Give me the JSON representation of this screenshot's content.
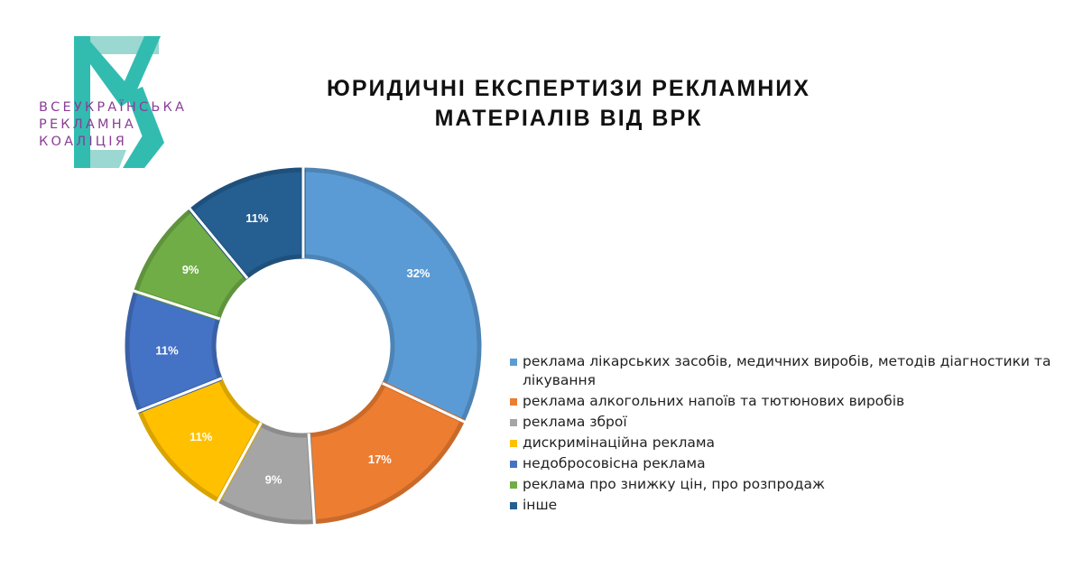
{
  "logo": {
    "lines": [
      "ВСЕУКРАЇНСЬКА",
      "РЕКЛАМНА",
      "КОАЛІЦІЯ"
    ],
    "colors": {
      "teal": "#32bcb0",
      "teal_light": "#9ad8d1",
      "purple": "#8a3d96"
    }
  },
  "chart_data": {
    "type": "donut",
    "title_lines": [
      "ЮРИДИЧНІ ЕКСПЕРТИЗИ РЕКЛАМНИХ",
      "МАТЕРІАЛІВ ВІД ВРК"
    ],
    "series": [
      {
        "name": "реклама лікарських засобів, медичних виробів, методів діагностики та лікування",
        "value": 32,
        "label": "32%",
        "color": "#5b9bd5"
      },
      {
        "name": "реклама алкогольних напоїв та тютюнових виробів",
        "value": 17,
        "label": "17%",
        "color": "#ed7d31"
      },
      {
        "name": "реклама зброї",
        "value": 9,
        "label": "9%",
        "color": "#a5a5a5"
      },
      {
        "name": "дискримінаційна реклама",
        "value": 11,
        "label": "11%",
        "color": "#ffc000"
      },
      {
        "name": "недобросовісна реклама",
        "value": 11,
        "label": "11%",
        "color": "#4472c4"
      },
      {
        "name": "реклама про знижку цін, про розпродаж",
        "value": 9,
        "label": "9%",
        "color": "#70ad47"
      },
      {
        "name": "інше",
        "value": 11,
        "label": "11%",
        "color": "#255e91"
      }
    ],
    "legend_position": "right"
  }
}
